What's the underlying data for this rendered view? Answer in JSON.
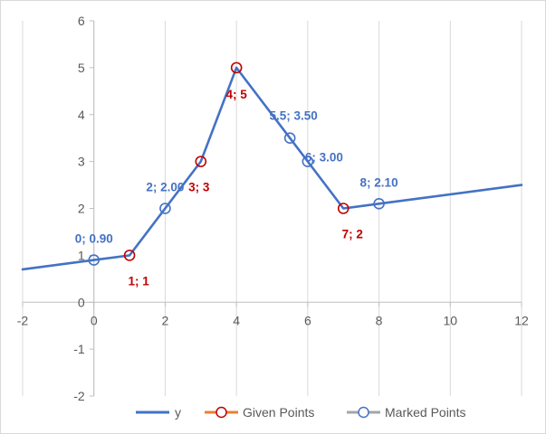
{
  "chart_data": {
    "type": "line",
    "title": "",
    "xlabel": "",
    "ylabel": "",
    "xlim": [
      -2,
      12
    ],
    "ylim": [
      -2,
      6
    ],
    "xticks": [
      -2,
      0,
      2,
      4,
      6,
      8,
      10,
      12
    ],
    "yticks": [
      -2,
      -1,
      0,
      1,
      2,
      3,
      4,
      5,
      6
    ],
    "grid": "vertical",
    "legend_position": "bottom",
    "colors": {
      "line": "#4472c4",
      "given": "#c00000",
      "given_legend": "#ed7d31",
      "marked": "#4472c4",
      "marked_legend": "#a5a5a5",
      "grid": "#d9d9d9",
      "axis": "#bfbfbf"
    },
    "series": [
      {
        "name": "y",
        "kind": "line",
        "x": [
          -2,
          0,
          1,
          2,
          3,
          4,
          5.5,
          6,
          7,
          8,
          12
        ],
        "y": [
          0.7,
          0.9,
          1,
          2,
          3,
          5,
          3.5,
          3,
          2,
          2.1,
          2.5
        ]
      },
      {
        "name": "Given Points",
        "kind": "markers",
        "points": [
          {
            "x": 1,
            "y": 1,
            "label": "1; 1"
          },
          {
            "x": 3,
            "y": 3,
            "label": "3; 3"
          },
          {
            "x": 4,
            "y": 5,
            "label": "4; 5"
          },
          {
            "x": 7,
            "y": 2,
            "label": "7; 2"
          }
        ]
      },
      {
        "name": "Marked Points",
        "kind": "markers",
        "points": [
          {
            "x": 0,
            "y": 0.9,
            "label": "0; 0.90"
          },
          {
            "x": 2,
            "y": 2,
            "label": "2; 2.00"
          },
          {
            "x": 5.5,
            "y": 3.5,
            "label": "5.5; 3.50"
          },
          {
            "x": 6,
            "y": 3,
            "label": "6; 3.00"
          },
          {
            "x": 8,
            "y": 2.1,
            "label": "8; 2.10"
          }
        ]
      }
    ]
  }
}
